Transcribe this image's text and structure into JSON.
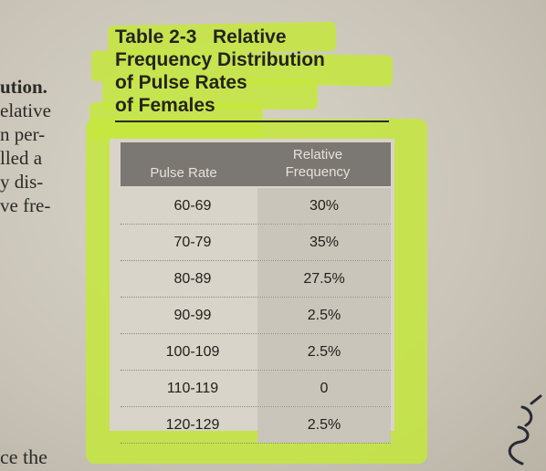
{
  "left_fragments": [
    "ution.",
    "elative",
    "n per-",
    "lled a",
    "y dis-",
    "ve fre-"
  ],
  "bottom_fragment": "ce the",
  "table": {
    "title_lines": [
      "Table 2-3   Relative",
      "Frequency Distribution",
      "of Pulse Rates",
      "of Females"
    ],
    "headers": {
      "col1": "Pulse Rate",
      "col2_line1": "Relative",
      "col2_line2": "Frequency"
    },
    "rows": [
      {
        "pulse_rate": "60-69",
        "relative_frequency": "30%"
      },
      {
        "pulse_rate": "70-79",
        "relative_frequency": "35%"
      },
      {
        "pulse_rate": "80-89",
        "relative_frequency": "27.5%"
      },
      {
        "pulse_rate": "90-99",
        "relative_frequency": "2.5%"
      },
      {
        "pulse_rate": "100-109",
        "relative_frequency": "2.5%"
      },
      {
        "pulse_rate": "110-119",
        "relative_frequency": "0"
      },
      {
        "pulse_rate": "120-129",
        "relative_frequency": "2.5%"
      }
    ]
  },
  "colors": {
    "highlighter": "#c4e83c",
    "header_bg": "#7b7772",
    "paper": "#cfcabd"
  }
}
